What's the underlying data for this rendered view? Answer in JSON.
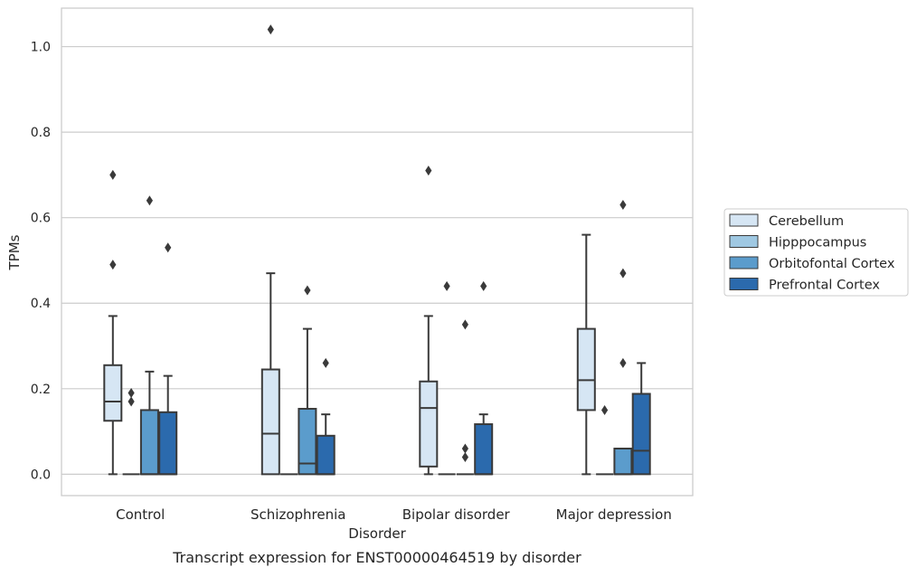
{
  "chart_data": {
    "type": "boxplot",
    "xlabel": "Disorder",
    "ylabel": "TPMs",
    "caption": "Transcript expression for ENST00000464519 by disorder",
    "ylim": [
      -0.05,
      1.09
    ],
    "yticks": [
      0.0,
      0.2,
      0.4,
      0.6,
      0.8,
      1.0
    ],
    "ytick_labels": [
      "0.0",
      "0.2",
      "0.4",
      "0.6",
      "0.8",
      "1.0"
    ],
    "grid": "horizontal",
    "legend_position": "right",
    "categories": [
      "Control",
      "Schizophrenia",
      "Bipolar disorder",
      "Major depression"
    ],
    "series": [
      {
        "name": "Cerebellum",
        "color": "#d6e6f4",
        "boxes": [
          {
            "q1": 0.125,
            "median": 0.17,
            "q3": 0.255,
            "whisker_low": 0.0,
            "whisker_high": 0.37,
            "outliers": [
              0.49,
              0.7
            ]
          },
          {
            "q1": 0.0,
            "median": 0.095,
            "q3": 0.245,
            "whisker_low": 0.0,
            "whisker_high": 0.47,
            "outliers": [
              1.04
            ]
          },
          {
            "q1": 0.018,
            "median": 0.155,
            "q3": 0.217,
            "whisker_low": 0.0,
            "whisker_high": 0.37,
            "outliers": [
              0.71
            ]
          },
          {
            "q1": 0.15,
            "median": 0.22,
            "q3": 0.34,
            "whisker_low": 0.0,
            "whisker_high": 0.56,
            "outliers": []
          }
        ]
      },
      {
        "name": "Hipppocampus",
        "color": "#9fc8e2",
        "boxes": [
          {
            "q1": 0.0,
            "median": 0.0,
            "q3": 0.0,
            "whisker_low": 0.0,
            "whisker_high": 0.0,
            "outliers": [
              0.17,
              0.19
            ]
          },
          {
            "q1": 0.0,
            "median": 0.0,
            "q3": 0.0,
            "whisker_low": 0.0,
            "whisker_high": 0.0,
            "outliers": []
          },
          {
            "q1": 0.0,
            "median": 0.0,
            "q3": 0.0,
            "whisker_low": 0.0,
            "whisker_high": 0.0,
            "outliers": [
              0.44
            ]
          },
          {
            "q1": 0.0,
            "median": 0.0,
            "q3": 0.0,
            "whisker_low": 0.0,
            "whisker_high": 0.0,
            "outliers": [
              0.15
            ]
          }
        ]
      },
      {
        "name": "Orbitofontal Cortex",
        "color": "#5b9ccc",
        "boxes": [
          {
            "q1": 0.0,
            "median": 0.0,
            "q3": 0.15,
            "whisker_low": 0.0,
            "whisker_high": 0.24,
            "outliers": [
              0.64
            ]
          },
          {
            "q1": 0.0,
            "median": 0.025,
            "q3": 0.153,
            "whisker_low": 0.0,
            "whisker_high": 0.34,
            "outliers": [
              0.43
            ]
          },
          {
            "q1": 0.0,
            "median": 0.0,
            "q3": 0.0,
            "whisker_low": 0.0,
            "whisker_high": 0.0,
            "outliers": [
              0.04,
              0.06,
              0.35
            ]
          },
          {
            "q1": 0.0,
            "median": 0.0,
            "q3": 0.06,
            "whisker_low": 0.0,
            "whisker_high": 0.06,
            "outliers": [
              0.26,
              0.47,
              0.63
            ]
          }
        ]
      },
      {
        "name": "Prefrontal Cortex",
        "color": "#2b6aad",
        "boxes": [
          {
            "q1": 0.0,
            "median": 0.0,
            "q3": 0.145,
            "whisker_low": 0.0,
            "whisker_high": 0.23,
            "outliers": [
              0.53
            ]
          },
          {
            "q1": 0.0,
            "median": 0.0,
            "q3": 0.09,
            "whisker_low": 0.0,
            "whisker_high": 0.14,
            "outliers": [
              0.26
            ]
          },
          {
            "q1": 0.0,
            "median": 0.0,
            "q3": 0.117,
            "whisker_low": 0.0,
            "whisker_high": 0.14,
            "outliers": [
              0.44
            ]
          },
          {
            "q1": 0.0,
            "median": 0.055,
            "q3": 0.188,
            "whisker_low": 0.0,
            "whisker_high": 0.26,
            "outliers": []
          }
        ]
      }
    ]
  }
}
